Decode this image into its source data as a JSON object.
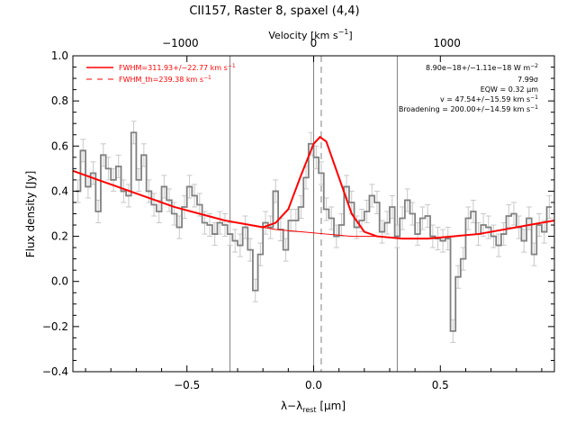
{
  "chart_data": {
    "type": "line",
    "title": "CII157, Raster 8, spaxel (4,4)",
    "xlabel": "λ−λ",
    "xlabel_sub": "rest",
    "xlabel_unit": " [μm]",
    "ylabel": "Flux density [Jy]",
    "top_axis_label": "Velocity [km s",
    "top_axis_label_sup": "−1",
    "top_axis_label_end": "]",
    "xlim": [
      -0.95,
      0.95
    ],
    "ylim": [
      -0.4,
      1.0
    ],
    "xticks": [
      -0.5,
      0.0,
      0.5
    ],
    "xtick_labels": [
      "−0.5",
      "0.0",
      "0.5"
    ],
    "yticks": [
      -0.4,
      -0.2,
      0.0,
      0.2,
      0.4,
      0.6,
      0.8,
      1.0
    ],
    "ytick_labels": [
      "−0.4",
      "−0.2",
      "0.0",
      "0.2",
      "0.4",
      "0.6",
      "0.8",
      "1.0"
    ],
    "top_ticks": [
      -1000,
      0,
      1000
    ],
    "top_tick_labels": [
      "−1000",
      "0",
      "1000"
    ],
    "top_ticks_x": [
      -0.526,
      0.0,
      0.526
    ],
    "vlines_x": [
      -0.33,
      0.0,
      0.33
    ],
    "vline_dashed_x": 0.03,
    "legend": [
      {
        "label": "FWHM=311.93+/−22.77 km s",
        "sup": "−1",
        "color": "#ff0000",
        "style": "solid"
      },
      {
        "label": "FWHM_th=239.38 km s",
        "sup": "−1",
        "color": "#ff0000",
        "style": "dashed"
      }
    ],
    "annotations": [
      {
        "text": "8.90e−18+/−1.11e−18 W m",
        "sup": "−2"
      },
      {
        "text": "7.99σ",
        "sup": ""
      },
      {
        "text": "EQW = 0.32 μm",
        "sup": ""
      },
      {
        "text": "v = 47.54+/−15.59 km s",
        "sup": "−1"
      },
      {
        "text": "Broadening = 200.00+/−14.59 km s",
        "sup": "−1"
      }
    ],
    "series": [
      {
        "kind": "data-step",
        "color": "#808080",
        "x": [
          -0.93,
          -0.91,
          -0.89,
          -0.87,
          -0.85,
          -0.83,
          -0.81,
          -0.79,
          -0.77,
          -0.75,
          -0.73,
          -0.71,
          -0.69,
          -0.67,
          -0.65,
          -0.63,
          -0.61,
          -0.59,
          -0.57,
          -0.55,
          -0.53,
          -0.51,
          -0.49,
          -0.47,
          -0.45,
          -0.43,
          -0.41,
          -0.39,
          -0.37,
          -0.35,
          -0.33,
          -0.31,
          -0.29,
          -0.27,
          -0.25,
          -0.23,
          -0.21,
          -0.19,
          -0.17,
          -0.15,
          -0.13,
          -0.11,
          -0.09,
          -0.07,
          -0.05,
          -0.03,
          -0.01,
          0.01,
          0.03,
          0.05,
          0.07,
          0.09,
          0.11,
          0.13,
          0.15,
          0.17,
          0.19,
          0.21,
          0.23,
          0.25,
          0.27,
          0.29,
          0.31,
          0.33,
          0.35,
          0.37,
          0.39,
          0.41,
          0.43,
          0.45,
          0.47,
          0.49,
          0.51,
          0.53,
          0.55,
          0.57,
          0.59,
          0.61,
          0.63,
          0.65,
          0.67,
          0.69,
          0.71,
          0.73,
          0.75,
          0.77,
          0.79,
          0.81,
          0.83,
          0.85,
          0.87,
          0.89,
          0.91,
          0.93
        ],
        "y": [
          0.4,
          0.58,
          0.42,
          0.48,
          0.31,
          0.56,
          0.5,
          0.45,
          0.51,
          0.4,
          0.38,
          0.66,
          0.45,
          0.56,
          0.4,
          0.34,
          0.31,
          0.42,
          0.36,
          0.3,
          0.24,
          0.33,
          0.42,
          0.38,
          0.34,
          0.26,
          0.25,
          0.21,
          0.26,
          0.25,
          0.21,
          0.18,
          0.16,
          0.24,
          0.14,
          -0.04,
          0.12,
          0.26,
          0.24,
          0.4,
          0.23,
          0.14,
          0.27,
          0.27,
          0.33,
          0.46,
          0.61,
          0.55,
          0.48,
          0.32,
          0.28,
          0.2,
          0.25,
          0.42,
          0.35,
          0.24,
          0.27,
          0.31,
          0.38,
          0.35,
          0.22,
          0.26,
          0.33,
          0.2,
          0.28,
          0.36,
          0.3,
          0.21,
          0.28,
          0.29,
          0.2,
          0.19,
          0.18,
          0.19,
          -0.22,
          0.02,
          0.1,
          0.28,
          0.31,
          0.21,
          0.25,
          0.24,
          0.2,
          0.16,
          0.21,
          0.29,
          0.3,
          0.24,
          0.18,
          0.28,
          0.12,
          0.25,
          0.22,
          0.33
        ]
      },
      {
        "kind": "fit-total",
        "color": "#ff0000",
        "x": [
          -0.95,
          -0.85,
          -0.75,
          -0.65,
          -0.55,
          -0.45,
          -0.35,
          -0.25,
          -0.2,
          -0.15,
          -0.1,
          -0.05,
          0.0,
          0.025,
          0.05,
          0.1,
          0.15,
          0.2,
          0.25,
          0.35,
          0.45,
          0.55,
          0.65,
          0.75,
          0.85,
          0.95
        ],
        "y": [
          0.49,
          0.45,
          0.41,
          0.37,
          0.33,
          0.3,
          0.27,
          0.25,
          0.24,
          0.26,
          0.32,
          0.47,
          0.61,
          0.64,
          0.62,
          0.46,
          0.3,
          0.22,
          0.2,
          0.19,
          0.19,
          0.2,
          0.21,
          0.23,
          0.25,
          0.27
        ]
      },
      {
        "kind": "fit-thermal",
        "color": "#ff0000",
        "x": [
          -0.95,
          -0.85,
          -0.75,
          -0.65,
          -0.55,
          -0.45,
          -0.35,
          -0.25,
          -0.15,
          -0.05,
          0.05,
          0.15,
          0.25,
          0.35,
          0.45,
          0.55,
          0.65,
          0.75,
          0.85,
          0.95
        ],
        "y": [
          0.49,
          0.45,
          0.41,
          0.37,
          0.33,
          0.3,
          0.27,
          0.25,
          0.23,
          0.22,
          0.21,
          0.2,
          0.2,
          0.19,
          0.19,
          0.2,
          0.21,
          0.23,
          0.25,
          0.27
        ]
      }
    ],
    "error_bars_halfheight": 0.05
  }
}
